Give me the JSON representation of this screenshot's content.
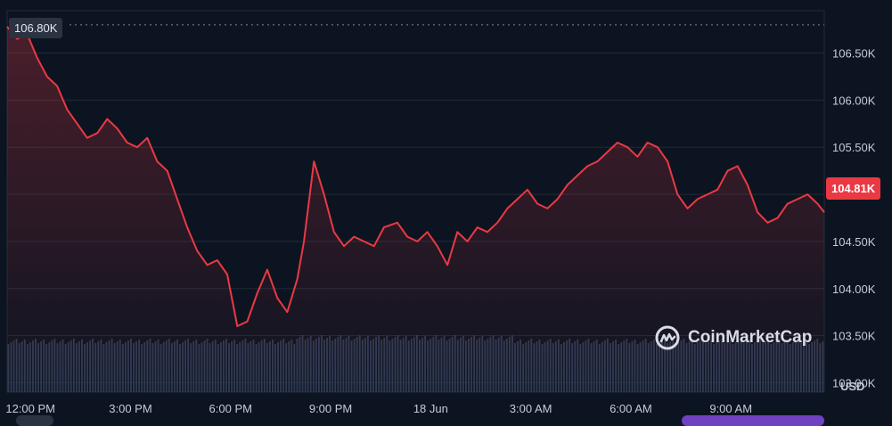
{
  "chart_data": {
    "type": "line",
    "title": "",
    "ylabel": "USD",
    "ylim": [
      102900,
      106950
    ],
    "y_ticks": [
      "106.50K",
      "106.00K",
      "105.50K",
      "105.00K",
      "104.50K",
      "104.00K",
      "103.50K",
      "103.00K"
    ],
    "y_tick_values": [
      106500,
      106000,
      105500,
      105000,
      104500,
      104000,
      103500,
      103000
    ],
    "x_ticks": [
      "12:00 PM",
      "3:00 PM",
      "6:00 PM",
      "9:00 PM",
      "18 Jun",
      "3:00 AM",
      "6:00 AM",
      "9:00 AM"
    ],
    "x_tick_hours": [
      1,
      4,
      7,
      10,
      13,
      16,
      19,
      22
    ],
    "x_range_hours": [
      0.3,
      24.8
    ],
    "high_label": "106.80K",
    "high_value": 106800,
    "last_label": "104.81K",
    "last_value": 104810,
    "grid": true,
    "series": [
      {
        "color": "#ea3943",
        "x": [
          0.3,
          0.6,
          0.9,
          1.2,
          1.5,
          1.8,
          2.1,
          2.4,
          2.7,
          3.0,
          3.3,
          3.6,
          3.9,
          4.2,
          4.5,
          4.8,
          5.1,
          5.4,
          5.7,
          6.0,
          6.3,
          6.6,
          6.9,
          7.2,
          7.5,
          7.8,
          8.1,
          8.4,
          8.7,
          9.0,
          9.2,
          9.5,
          9.8,
          10.1,
          10.4,
          10.7,
          11.0,
          11.3,
          11.6,
          12.0,
          12.3,
          12.6,
          12.9,
          13.2,
          13.5,
          13.8,
          14.1,
          14.4,
          14.7,
          15.0,
          15.3,
          15.6,
          15.9,
          16.2,
          16.5,
          16.8,
          17.1,
          17.4,
          17.7,
          18.0,
          18.3,
          18.6,
          18.9,
          19.2,
          19.5,
          19.8,
          20.1,
          20.4,
          20.7,
          21.0,
          21.3,
          21.6,
          21.9,
          22.2,
          22.5,
          22.8,
          23.1,
          23.4,
          23.7,
          24.0,
          24.3,
          24.6,
          24.8
        ],
        "y": [
          106780,
          106650,
          106700,
          106450,
          106250,
          106150,
          105900,
          105750,
          105600,
          105650,
          105800,
          105700,
          105550,
          105500,
          105600,
          105350,
          105250,
          104950,
          104650,
          104400,
          104250,
          104300,
          104150,
          103600,
          103650,
          103950,
          104200,
          103900,
          103750,
          104100,
          104500,
          105350,
          105000,
          104600,
          104450,
          104550,
          104500,
          104450,
          104650,
          104700,
          104550,
          104500,
          104600,
          104450,
          104250,
          104600,
          104500,
          104650,
          104600,
          104700,
          104850,
          104950,
          105050,
          104900,
          104850,
          104950,
          105100,
          105200,
          105300,
          105350,
          105450,
          105550,
          105500,
          105400,
          105550,
          105500,
          105350,
          105000,
          104850,
          104950,
          105000,
          105050,
          105250,
          105300,
          105100,
          104810,
          104700,
          104750,
          104900,
          104950,
          105000,
          104900,
          104810
        ]
      }
    ],
    "volume_bars": 300
  },
  "watermark": {
    "brand": "CoinMarketCap",
    "logo_icon": "coinmarketcap-logo-icon"
  },
  "colors": {
    "background": "#0d1421",
    "line": "#ea3943",
    "grid": "#222a39",
    "volume": "#2e3a52"
  }
}
